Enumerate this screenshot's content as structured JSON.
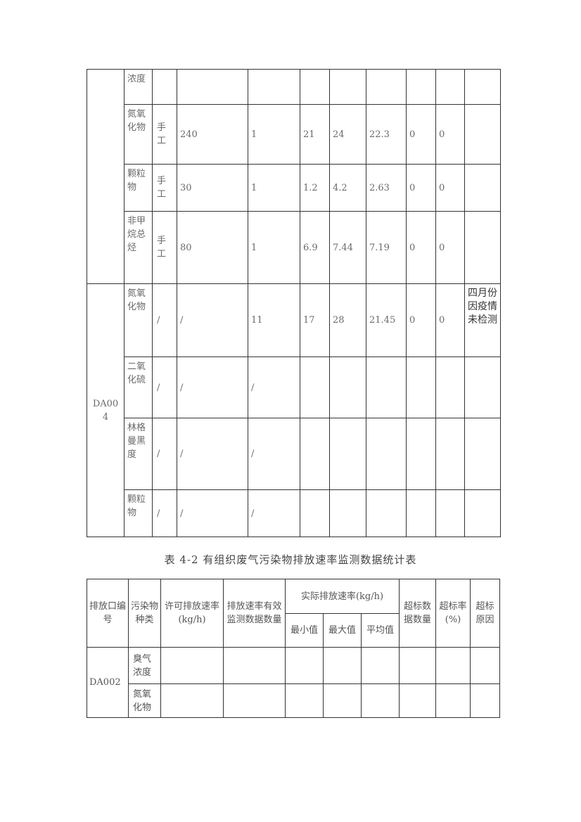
{
  "table1": {
    "groups": [
      {
        "outlet": "",
        "rows": [
          [
            "浓度",
            "",
            "",
            "",
            "",
            "",
            "",
            "",
            "",
            ""
          ],
          [
            "氮氧化物",
            "手工",
            "240",
            "1",
            "21",
            "24",
            "22.3",
            "0",
            "0",
            ""
          ],
          [
            "颗粒物",
            "手工",
            "30",
            "1",
            "1.2",
            "4.2",
            "2.63",
            "0",
            "0",
            ""
          ],
          [
            "非甲烷总烃",
            "手工",
            "80",
            "1",
            "6.9",
            "7.44",
            "7.19",
            "0",
            "0",
            ""
          ]
        ]
      },
      {
        "outlet": "DA004",
        "rows": [
          [
            "氮氧化物",
            "/",
            "/",
            "11",
            "17",
            "28",
            "21.45",
            "0",
            "0",
            "四月份因疫情未检测"
          ],
          [
            "二氧化硫",
            "/",
            "/",
            "/",
            "",
            "",
            "",
            "",
            "",
            ""
          ],
          [
            "林格曼黑度",
            "/",
            "/",
            "/",
            "",
            "",
            "",
            "",
            "",
            ""
          ],
          [
            "颗粒物",
            "/",
            "/",
            "/",
            "",
            "",
            "",
            "",
            "",
            ""
          ]
        ]
      }
    ]
  },
  "table2": {
    "title": "表 4-2 有组织废气污染物排放速率监测数据统计表",
    "headers": {
      "outlet": "排放口编号",
      "pollutant": "污染物种类",
      "permitted": "许可排放速率(kg/h)",
      "count": "排放速率有效监测数据数量",
      "actual": "实际排放速率(kg/h)",
      "min": "最小值",
      "max": "最大值",
      "avg": "平均值",
      "exceed_count": "超标数据数量",
      "exceed_rate": "超标率(%)",
      "exceed_reason": "超标原因"
    },
    "outlet": "DA002",
    "rows": [
      [
        "臭气浓度",
        "",
        "",
        "",
        "",
        "",
        "",
        "",
        ""
      ],
      [
        "氮氧化物",
        "",
        "",
        "",
        "",
        "",
        "",
        "",
        ""
      ]
    ]
  }
}
